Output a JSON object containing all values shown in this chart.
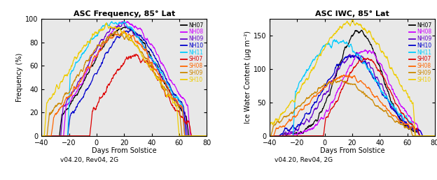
{
  "title_left": "ASC Frequency, 85° Lat",
  "title_right": "ASC IWC, 85° Lat",
  "xlabel": "Days From Solstice",
  "subtitle": "v04.20, Rev04, 2G",
  "ylabel_left": "Frequency (%)",
  "ylabel_right": "Ice Water Content (μg m⁻²)",
  "xlim": [
    -40,
    80
  ],
  "ylim_left": [
    0,
    100
  ],
  "ylim_right": [
    0,
    175
  ],
  "xticks": [
    -40,
    -20,
    0,
    20,
    40,
    60,
    80
  ],
  "yticks_left": [
    0,
    20,
    40,
    60,
    80,
    100
  ],
  "yticks_right": [
    0,
    50,
    100,
    150
  ],
  "legend_labels": [
    "NH07",
    "NH08",
    "NH09",
    "NH10",
    "NH11",
    "SH07",
    "SH08",
    "SH09",
    "SH10"
  ],
  "colors": {
    "NH07": "#000000",
    "NH08": "#cc00ff",
    "NH09": "#6600cc",
    "NH10": "#0000cc",
    "NH11": "#00ccff",
    "SH07": "#dd0000",
    "SH08": "#ff6600",
    "SH09": "#cc8800",
    "SH10": "#eecc00"
  },
  "bg_color": "#ffffff",
  "plot_bg": "#e8e8e8"
}
